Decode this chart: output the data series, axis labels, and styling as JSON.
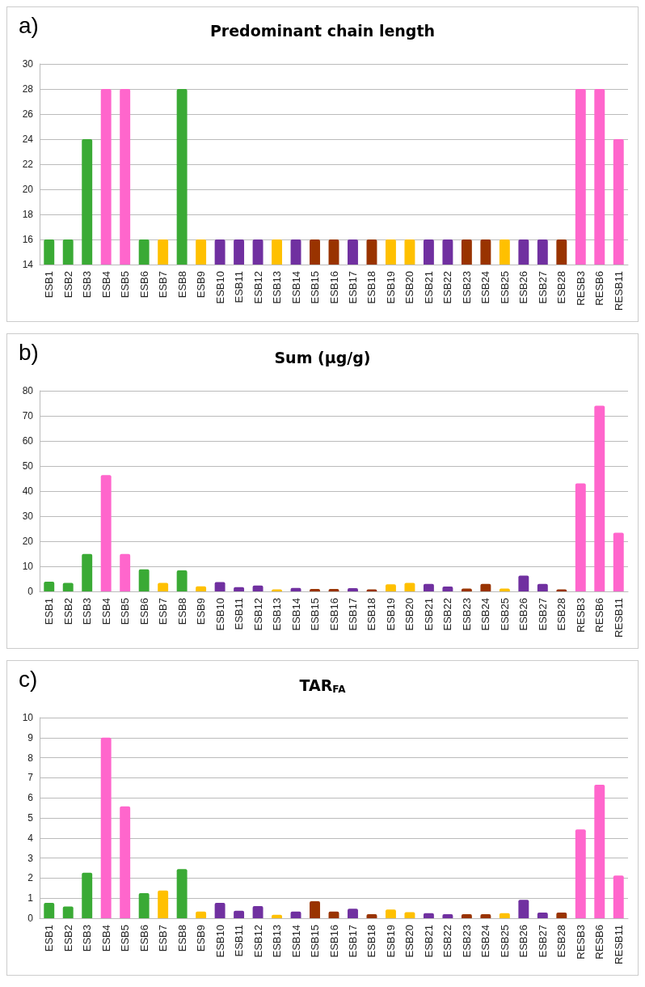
{
  "chart_data": [
    {
      "type": "bar",
      "title": "Predominant chain length",
      "annotations": [
        "a)"
      ],
      "categories": [
        "ESB1",
        "ESB2",
        "ESB3",
        "ESB4",
        "ESB5",
        "ESB6",
        "ESB7",
        "ESB8",
        "ESB9",
        "ESB10",
        "ESB11",
        "ESB12",
        "ESB13",
        "ESB14",
        "ESB15",
        "ESB16",
        "ESB17",
        "ESB18",
        "ESB19",
        "ESB20",
        "ESB21",
        "ESB22",
        "ESB23",
        "ESB24",
        "ESB25",
        "ESB26",
        "ESB27",
        "ESB28",
        "RESB3",
        "RESB6",
        "RESB11"
      ],
      "values": [
        16,
        16,
        24,
        28,
        28,
        16,
        16,
        28,
        16,
        16,
        16,
        16,
        16,
        16,
        16,
        16,
        16,
        16,
        16,
        16,
        16,
        16,
        16,
        16,
        16,
        16,
        16,
        16,
        28,
        28,
        24
      ],
      "colors": [
        "#3aaa35",
        "#3aaa35",
        "#3aaa35",
        "#ff66cc",
        "#ff66cc",
        "#3aaa35",
        "#ffc000",
        "#3aaa35",
        "#ffc000",
        "#7030a0",
        "#7030a0",
        "#7030a0",
        "#ffc000",
        "#7030a0",
        "#993300",
        "#993300",
        "#7030a0",
        "#993300",
        "#ffc000",
        "#ffc000",
        "#7030a0",
        "#7030a0",
        "#993300",
        "#993300",
        "#ffc000",
        "#7030a0",
        "#7030a0",
        "#993300",
        "#ff66cc",
        "#ff66cc",
        "#ff66cc"
      ],
      "ylim": [
        14,
        30
      ],
      "yticks": [
        14,
        16,
        18,
        20,
        22,
        24,
        26,
        28,
        30
      ],
      "grid": "y"
    },
    {
      "type": "bar",
      "title": "Sum (μg/g)",
      "annotations": [
        "b)"
      ],
      "categories": [
        "ESB1",
        "ESB2",
        "ESB3",
        "ESB4",
        "ESB5",
        "ESB6",
        "ESB7",
        "ESB8",
        "ESB9",
        "ESB10",
        "ESB11",
        "ESB12",
        "ESB13",
        "ESB14",
        "ESB15",
        "ESB16",
        "ESB17",
        "ESB18",
        "ESB19",
        "ESB20",
        "ESB21",
        "ESB22",
        "ESB23",
        "ESB24",
        "ESB25",
        "ESB26",
        "ESB27",
        "ESB28",
        "RESB3",
        "RESB6",
        "RESB11"
      ],
      "values": [
        3.9,
        3.4,
        14.9,
        46.4,
        14.9,
        8.8,
        3.4,
        8.4,
        2.0,
        3.7,
        1.7,
        2.3,
        0.8,
        1.4,
        1.0,
        1.0,
        1.3,
        0.8,
        2.8,
        3.4,
        3.0,
        1.9,
        1.1,
        3.0,
        1.1,
        6.3,
        3.0,
        0.8,
        43.1,
        74.0,
        23.4
      ],
      "colors": [
        "#3aaa35",
        "#3aaa35",
        "#3aaa35",
        "#ff66cc",
        "#ff66cc",
        "#3aaa35",
        "#ffc000",
        "#3aaa35",
        "#ffc000",
        "#7030a0",
        "#7030a0",
        "#7030a0",
        "#ffc000",
        "#7030a0",
        "#993300",
        "#993300",
        "#7030a0",
        "#993300",
        "#ffc000",
        "#ffc000",
        "#7030a0",
        "#7030a0",
        "#993300",
        "#993300",
        "#ffc000",
        "#7030a0",
        "#7030a0",
        "#993300",
        "#ff66cc",
        "#ff66cc",
        "#ff66cc"
      ],
      "ylim": [
        0,
        80
      ],
      "yticks": [
        0,
        10,
        20,
        30,
        40,
        50,
        60,
        70,
        80
      ],
      "grid": "y"
    },
    {
      "type": "bar",
      "title": "TAR$_{FA}$",
      "annotations": [
        "c)"
      ],
      "categories": [
        "ESB1",
        "ESB2",
        "ESB3",
        "ESB4",
        "ESB5",
        "ESB6",
        "ESB7",
        "ESB8",
        "ESB9",
        "ESB10",
        "ESB11",
        "ESB12",
        "ESB13",
        "ESB14",
        "ESB15",
        "ESB16",
        "ESB17",
        "ESB18",
        "ESB19",
        "ESB20",
        "ESB21",
        "ESB22",
        "ESB23",
        "ESB24",
        "ESB25",
        "ESB26",
        "ESB27",
        "ESB28",
        "RESB3",
        "RESB6",
        "RESB11"
      ],
      "values": [
        0.77,
        0.58,
        2.27,
        9.0,
        5.57,
        1.25,
        1.38,
        2.45,
        0.33,
        0.77,
        0.37,
        0.6,
        0.17,
        0.33,
        0.85,
        0.33,
        0.47,
        0.2,
        0.43,
        0.3,
        0.25,
        0.2,
        0.2,
        0.2,
        0.25,
        0.92,
        0.28,
        0.28,
        4.43,
        6.65,
        2.13
      ],
      "colors": [
        "#3aaa35",
        "#3aaa35",
        "#3aaa35",
        "#ff66cc",
        "#ff66cc",
        "#3aaa35",
        "#ffc000",
        "#3aaa35",
        "#ffc000",
        "#7030a0",
        "#7030a0",
        "#7030a0",
        "#ffc000",
        "#7030a0",
        "#993300",
        "#993300",
        "#7030a0",
        "#993300",
        "#ffc000",
        "#ffc000",
        "#7030a0",
        "#7030a0",
        "#993300",
        "#993300",
        "#ffc000",
        "#7030a0",
        "#7030a0",
        "#993300",
        "#ff66cc",
        "#ff66cc",
        "#ff66cc"
      ],
      "ylim": [
        0,
        10
      ],
      "yticks": [
        0,
        1,
        2,
        3,
        4,
        5,
        6,
        7,
        8,
        9,
        10
      ],
      "grid": "y"
    }
  ]
}
